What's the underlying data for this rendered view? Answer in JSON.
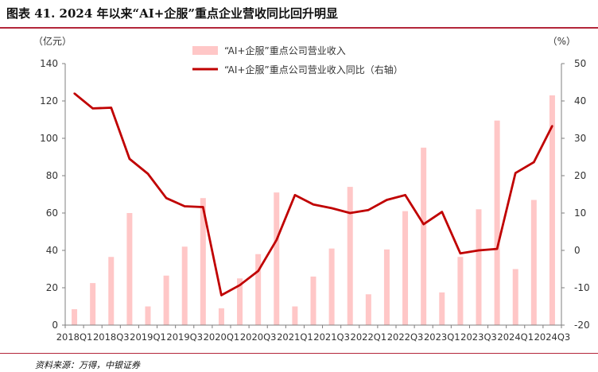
{
  "header": {
    "title": "图表 41. 2024 年以来“AI+企服”重点企业营收同比回升明显"
  },
  "footer": {
    "source": "资料来源：万得，中银证券"
  },
  "chart_data": {
    "type": "bar",
    "y_unit_left": "（亿元）",
    "y_unit_right": "（%）",
    "categories": [
      "2018Q1",
      "2018Q2",
      "2018Q3",
      "2018Q4",
      "2019Q1",
      "2019Q2",
      "2019Q3",
      "2019Q4",
      "2020Q1",
      "2020Q2",
      "2020Q3",
      "2020Q4",
      "2021Q1",
      "2021Q2",
      "2021Q3",
      "2021Q4",
      "2022Q1",
      "2022Q2",
      "2022Q3",
      "2022Q4",
      "2023Q1",
      "2023Q2",
      "2023Q3",
      "2023Q4",
      "2024Q1",
      "2024Q2",
      "2024Q3"
    ],
    "tick_labels": [
      "2018Q1",
      "2018Q3",
      "2019Q1",
      "2019Q3",
      "2020Q1",
      "2020Q3",
      "2021Q1",
      "2021Q3",
      "2022Q1",
      "2022Q3",
      "2023Q1",
      "2023Q3",
      "2024Q1",
      "2024Q3"
    ],
    "left_ticks": [
      "0",
      "20",
      "40",
      "60",
      "80",
      "100",
      "120",
      "140"
    ],
    "right_ticks": [
      "-20",
      "-10",
      "0",
      "10",
      "20",
      "30",
      "40",
      "50"
    ],
    "ylim_left": [
      0,
      140
    ],
    "ylim_right": [
      -20,
      50
    ],
    "series": [
      {
        "name": "“AI+企服”重点公司营业收入",
        "kind": "bar",
        "axis": "left",
        "color": "#ffc7c7",
        "values": [
          8.5,
          22.5,
          36.5,
          60,
          10,
          26.5,
          42,
          68,
          9,
          25,
          38,
          71,
          10,
          26,
          41,
          74,
          16.5,
          40.5,
          61,
          95,
          17.5,
          36.5,
          62,
          109.5,
          30,
          67,
          123
        ]
      },
      {
        "name": "“AI+企服”重点公司营业收入同比（右轴）",
        "kind": "line",
        "axis": "right",
        "color": "#c00000",
        "values": [
          42,
          38,
          38.2,
          24.5,
          20.5,
          14,
          11.8,
          11.6,
          -12,
          -9.3,
          -5.5,
          2.8,
          14.8,
          12.3,
          11.3,
          10,
          10.8,
          13.5,
          14.8,
          7,
          10.3,
          -0.8,
          0,
          0.4,
          20.7,
          23.6,
          33.3
        ]
      }
    ]
  }
}
